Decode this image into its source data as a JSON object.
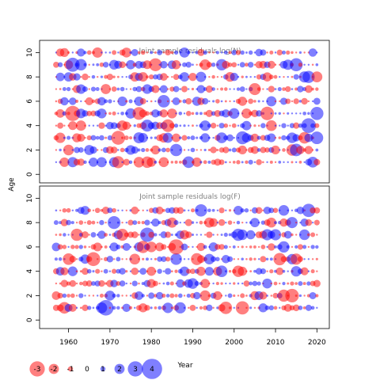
{
  "chart_data": [
    {
      "type": "scatter",
      "title": "Joint sample residuals log(N)",
      "xlim": [
        1953,
        2023
      ],
      "ylim": [
        -0.7,
        11
      ],
      "yticks": [
        "0",
        "2",
        "4",
        "6",
        "8",
        "10"
      ],
      "ages": [
        1,
        2,
        3,
        4,
        5,
        6,
        7,
        8,
        9,
        10
      ],
      "years": [
        1957,
        2020
      ],
      "colors": {
        "positive": "#0000ff",
        "negative": "#ff0000"
      },
      "seed": 17
    },
    {
      "type": "scatter",
      "title": "Joint sample residuals log(F)",
      "xlim": [
        1953,
        2023
      ],
      "ylim": [
        -0.7,
        11
      ],
      "yticks": [
        "0",
        "2",
        "4",
        "6",
        "8",
        "10"
      ],
      "ages": [
        1,
        2,
        3,
        4,
        5,
        6,
        7,
        8,
        9
      ],
      "years": [
        1957,
        2020
      ],
      "colors": {
        "positive": "#0000ff",
        "negative": "#ff0000"
      },
      "seed": 91
    }
  ],
  "xaxis": {
    "label": "Year",
    "ticks": [
      "1960",
      "1970",
      "1980",
      "1990",
      "2000",
      "2010",
      "2020"
    ]
  },
  "yaxis": {
    "label": "Age"
  },
  "legend": {
    "items": [
      {
        "label": "-3",
        "value": -3
      },
      {
        "label": "-2",
        "value": -2
      },
      {
        "label": "-1",
        "value": -1
      },
      {
        "label": "0",
        "value": 0
      },
      {
        "label": "1",
        "value": 1
      },
      {
        "label": "2",
        "value": 2
      },
      {
        "label": "3",
        "value": 3
      },
      {
        "label": "4",
        "value": 4
      }
    ]
  }
}
